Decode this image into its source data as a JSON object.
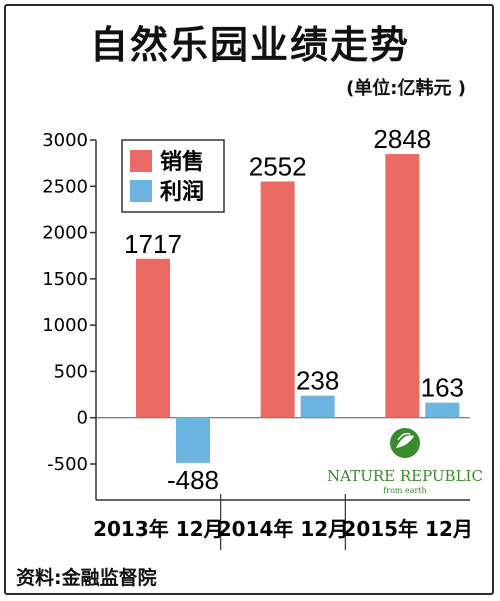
{
  "title": "自然乐园业绩走势",
  "unit": "(单位:亿韩元 )",
  "source": "资料:金融监督院",
  "logo": {
    "name": "NATURE REPUBLIC",
    "tagline": "from earth"
  },
  "colors": {
    "sales": "#ec6a64",
    "profit": "#6cb5e3",
    "axis": "#333333"
  },
  "chart_data": {
    "type": "bar",
    "categories": [
      "2013年 12月",
      "2014年 12月",
      "2015年 12月"
    ],
    "series": [
      {
        "name": "销售",
        "values": [
          1717,
          2552,
          2848
        ]
      },
      {
        "name": "利润",
        "values": [
          -488,
          238,
          163
        ]
      }
    ],
    "data_labels": [
      [
        "1717",
        "2552",
        "2848"
      ],
      [
        "-488",
        "238",
        "163"
      ]
    ],
    "ylim": [
      -500,
      3000
    ],
    "yticks": [
      3000,
      2500,
      2000,
      1500,
      1000,
      500,
      0,
      -500
    ],
    "ytick_labels": [
      "3000",
      "2500",
      "2000",
      "1500",
      "1000",
      "500",
      "0",
      "-500"
    ],
    "legend_position": "top-left",
    "grid": false
  }
}
